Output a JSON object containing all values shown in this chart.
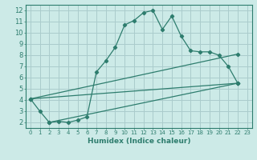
{
  "xlabel": "Humidex (Indice chaleur)",
  "background_color": "#cceae7",
  "grid_color": "#aacccc",
  "line_color": "#2e7d6e",
  "xlim": [
    -0.5,
    23.5
  ],
  "ylim": [
    1.5,
    12.5
  ],
  "yticks": [
    2,
    3,
    4,
    5,
    6,
    7,
    8,
    9,
    10,
    11,
    12
  ],
  "xticks": [
    0,
    1,
    2,
    3,
    4,
    5,
    6,
    7,
    8,
    9,
    10,
    11,
    12,
    13,
    14,
    15,
    16,
    17,
    18,
    19,
    20,
    21,
    22,
    23
  ],
  "series1_x": [
    0,
    1,
    2,
    3,
    4,
    5,
    6,
    7,
    8,
    9,
    10,
    11,
    12,
    13,
    14,
    15,
    16,
    17,
    18,
    19,
    20,
    21,
    22
  ],
  "series1_y": [
    4.1,
    3.0,
    2.0,
    2.1,
    2.0,
    2.2,
    2.5,
    6.5,
    7.5,
    8.7,
    10.7,
    11.1,
    11.8,
    12.0,
    10.3,
    11.5,
    9.7,
    8.4,
    8.3,
    8.3,
    8.0,
    7.0,
    5.5
  ],
  "series2_x": [
    0,
    22
  ],
  "series2_y": [
    4.1,
    5.5
  ],
  "series3_x": [
    0,
    22
  ],
  "series3_y": [
    4.1,
    8.1
  ],
  "series4_x": [
    2,
    22
  ],
  "series4_y": [
    2.0,
    5.5
  ],
  "xlabel_fontsize": 6.5,
  "tick_fontsize_x": 5,
  "tick_fontsize_y": 6
}
